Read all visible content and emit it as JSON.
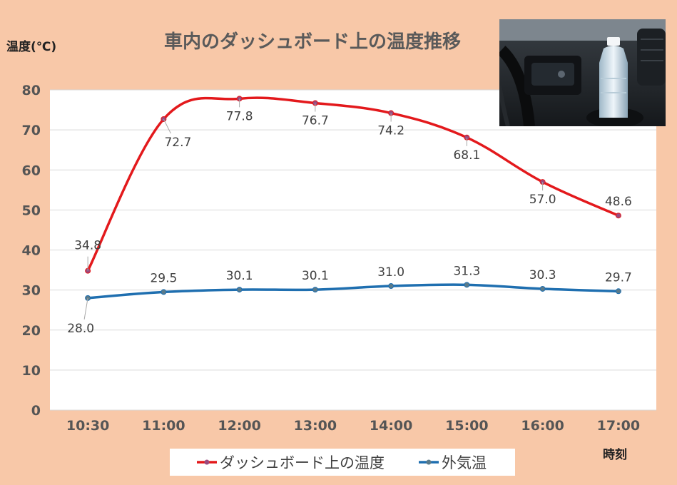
{
  "chart_data": {
    "type": "line",
    "title": "車内のダッシュボード上の温度推移",
    "ylabel": "温度(℃)",
    "xlabel": "時刻",
    "categories": [
      "10:30",
      "11:00",
      "12:00",
      "13:00",
      "14:00",
      "15:00",
      "16:00",
      "17:00"
    ],
    "ylim": [
      0,
      80
    ],
    "yticks": [
      0,
      10,
      20,
      30,
      40,
      50,
      60,
      70,
      80
    ],
    "grid": true,
    "legend": "bottom",
    "series": [
      {
        "name": "ダッシュボード上の温度",
        "color": "#e3191c",
        "values": [
          34.8,
          72.7,
          77.8,
          76.7,
          74.2,
          68.1,
          57.0,
          48.6
        ],
        "labels": [
          "34.8",
          "72.7",
          "77.8",
          "76.7",
          "74.2",
          "68.1",
          "57.0",
          "48.6"
        ]
      },
      {
        "name": "外気温",
        "color": "#1f6fb0",
        "values": [
          28.0,
          29.5,
          30.1,
          30.1,
          31.0,
          31.3,
          30.3,
          29.7
        ],
        "labels": [
          "28.0",
          "29.5",
          "30.1",
          "30.1",
          "31.0",
          "31.3",
          "30.3",
          "29.7"
        ]
      }
    ]
  },
  "photo": {
    "icon": "car-dashboard-bottle-photo"
  }
}
